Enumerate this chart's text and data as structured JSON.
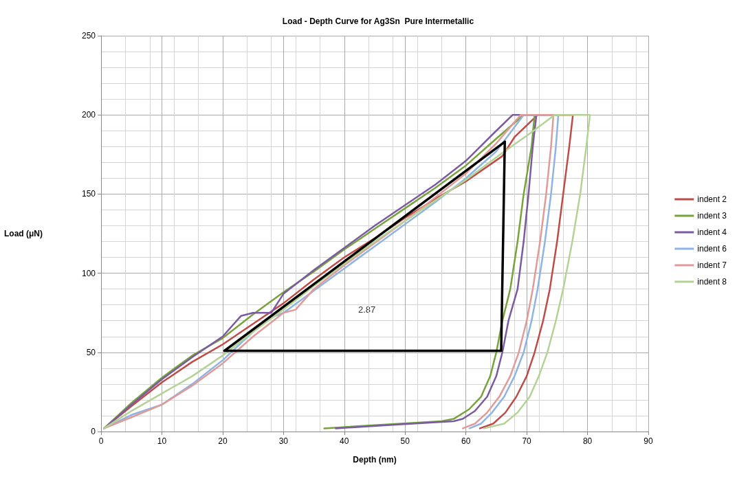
{
  "chart_data": {
    "type": "line",
    "title": "Load - Depth Curve for Ag3Sn  Pure Intermetallic",
    "xlabel": "Depth (nm)",
    "ylabel": "Load (μN)",
    "xlim": [
      0,
      90
    ],
    "xticks": [
      0,
      10,
      20,
      30,
      40,
      50,
      60,
      70,
      80,
      90
    ],
    "ylim": [
      0,
      250
    ],
    "yticks": [
      0,
      50,
      100,
      150,
      200,
      250
    ],
    "grid": true,
    "legend": "right",
    "marker": "none",
    "line_style": "solid",
    "annotations": [
      "2.87"
    ],
    "series": [
      {
        "name": "indent 2",
        "color": "#be4b48",
        "x": [
          0.5,
          5,
          10,
          15,
          20,
          25,
          30,
          35,
          40,
          45,
          50,
          55,
          60,
          66,
          68,
          71.8,
          77.6,
          77,
          76,
          75,
          73.8,
          72.7,
          71.3,
          70,
          68.3,
          66.5,
          64.5,
          62.3
        ],
        "values": [
          2,
          16,
          31,
          44,
          55,
          68,
          81,
          96,
          110,
          122,
          135,
          147,
          158,
          174,
          186,
          200,
          200,
          180,
          150,
          120,
          90,
          70,
          50,
          35,
          22,
          12,
          5,
          2
        ]
      },
      {
        "name": "indent 3",
        "color": "#77a33b",
        "x": [
          0.5,
          5,
          10,
          15,
          20,
          25,
          30,
          35,
          40,
          45,
          50,
          55,
          60,
          65,
          69.5,
          71.3,
          70.8,
          69.5,
          68.5,
          67.3,
          66,
          65,
          64,
          62.5,
          60.5,
          58,
          56,
          45,
          36.7
        ],
        "values": [
          2,
          18,
          34,
          48,
          59,
          74,
          88,
          101,
          115,
          128,
          141,
          154,
          168,
          185,
          200,
          200,
          180,
          150,
          120,
          90,
          70,
          50,
          35,
          22,
          14,
          8,
          6.5,
          4,
          2
        ]
      },
      {
        "name": "indent 4",
        "color": "#7b5aa0",
        "x": [
          0.5,
          5,
          10,
          15,
          20,
          23,
          25,
          28,
          30,
          35,
          40,
          45,
          50,
          55,
          60,
          65,
          67.7,
          71.6,
          71,
          70.3,
          69.5,
          68.5,
          67,
          66,
          65,
          63.5,
          61.5,
          59.5,
          58,
          47,
          38.6
        ],
        "values": [
          2,
          17,
          33,
          47,
          60,
          73,
          75,
          75,
          87,
          102,
          116,
          130,
          143,
          156,
          171,
          190,
          200,
          200,
          180,
          150,
          120,
          90,
          70,
          50,
          35,
          22,
          13,
          8,
          6.5,
          4,
          2
        ]
      },
      {
        "name": "indent 6",
        "color": "#8eb4e3",
        "x": [
          0.5,
          5,
          10,
          15,
          20,
          25,
          28,
          30,
          35,
          40,
          45,
          50,
          55,
          60,
          65,
          69.5,
          75.2,
          74.8,
          74,
          73,
          71.8,
          70.8,
          69.5,
          68,
          66.3,
          64.3,
          62.5,
          60.6
        ],
        "values": [
          2,
          10.5,
          17,
          30,
          45,
          63,
          72,
          75,
          89,
          103,
          117,
          131,
          145,
          160,
          177,
          200,
          200,
          180,
          150,
          120,
          90,
          70,
          50,
          35,
          22,
          12,
          5,
          2
        ]
      },
      {
        "name": "indent 7",
        "color": "#e09a98",
        "x": [
          0.5,
          5,
          10,
          15,
          20,
          25,
          30,
          32,
          35,
          40,
          45,
          50,
          55,
          60,
          65,
          69,
          74.4,
          74,
          73.2,
          72.2,
          71,
          70,
          68.7,
          67.3,
          65.5,
          63.5,
          61.5,
          59.5
        ],
        "values": [
          2,
          9,
          17,
          29,
          43,
          60,
          75,
          77,
          90,
          105,
          119,
          133,
          148,
          163,
          182,
          200,
          200,
          180,
          150,
          120,
          90,
          70,
          50,
          35,
          22,
          12,
          5,
          2
        ]
      },
      {
        "name": "indent 8",
        "color": "#b3d395",
        "x": [
          0.5,
          5,
          10,
          15,
          20,
          25,
          30,
          35,
          40,
          45,
          50,
          55,
          60,
          66,
          70.8,
          74.6,
          80.4,
          79.8,
          78.8,
          77.5,
          76,
          74.8,
          73.4,
          72,
          70.5,
          68.5,
          66.3,
          63
        ],
        "values": [
          2,
          13,
          24,
          35,
          48,
          63,
          77,
          92,
          106,
          120,
          133,
          146,
          159,
          176,
          189,
          200,
          200,
          180,
          150,
          120,
          90,
          70,
          50,
          35,
          22,
          12,
          5,
          2
        ]
      },
      {
        "color": "#000000",
        "x": [
          20.3,
          66.4
        ],
        "values": [
          51,
          183
        ]
      },
      {
        "color": "#000000",
        "x": [
          65.8,
          66.4
        ],
        "values": [
          51,
          183
        ]
      },
      {
        "color": "#000000",
        "x": [
          20.3,
          65.8
        ],
        "values": [
          51,
          51
        ]
      }
    ]
  }
}
